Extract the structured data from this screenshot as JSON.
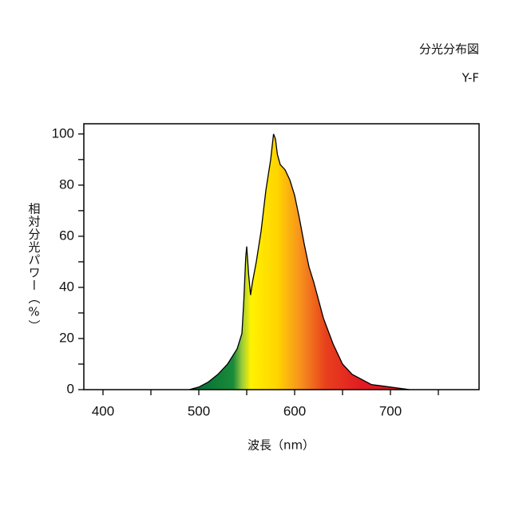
{
  "chart_data": {
    "type": "area",
    "title": "分光分布図",
    "subtitle": "Y-F",
    "x_label": "波長（nm）",
    "y_label": "相対分光パワー（%）",
    "x": [
      490,
      500,
      510,
      520,
      530,
      540,
      545,
      547,
      549,
      550,
      552,
      554,
      556,
      560,
      565,
      570,
      575,
      578,
      580,
      582,
      585,
      590,
      595,
      600,
      605,
      610,
      615,
      620,
      625,
      630,
      635,
      640,
      650,
      660,
      670,
      680,
      690,
      700,
      710,
      720
    ],
    "values": [
      0,
      1,
      3,
      6,
      10,
      16,
      22,
      35,
      52,
      56,
      45,
      37,
      42,
      50,
      62,
      78,
      90,
      100,
      98,
      92,
      88,
      86,
      82,
      76,
      67,
      57,
      48,
      42,
      35,
      28,
      23,
      18,
      10,
      6,
      4,
      2,
      1.5,
      1,
      0.5,
      0
    ],
    "xlim": [
      380,
      792.5
    ],
    "ylim": [
      0,
      104
    ],
    "xticks": [
      400,
      500,
      600,
      700
    ],
    "yticks": [
      0,
      20,
      40,
      60,
      80,
      100
    ],
    "x_minor_ticks": [
      450,
      550,
      650,
      750
    ],
    "y_minor_ticks": [
      10,
      30,
      50,
      70,
      90
    ],
    "line_color": "#000000"
  }
}
